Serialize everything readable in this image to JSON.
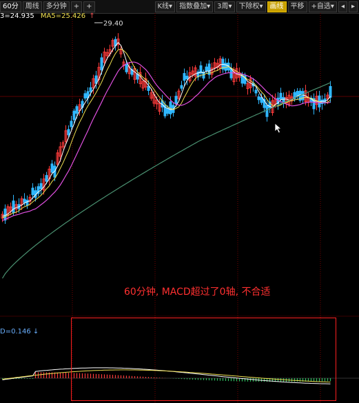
{
  "toolbar": {
    "left": [
      {
        "label": "60分"
      },
      {
        "label": "周线"
      },
      {
        "label": "多分钟"
      },
      {
        "label": "+"
      },
      {
        "label": "+"
      }
    ],
    "right": [
      {
        "label": "K线▾"
      },
      {
        "label": "指数叠加▾"
      },
      {
        "label": "3周▾"
      },
      {
        "label": "下除权▾"
      },
      {
        "label": "画线",
        "active": true
      },
      {
        "label": "平移"
      },
      {
        "label": "+自选▾"
      },
      {
        "label": "◂"
      },
      {
        "label": "▸"
      }
    ]
  },
  "ma_legend": {
    "ma3": "3=24.935",
    "ma5": "MA5=25.426",
    "arrow": "↑"
  },
  "chart": {
    "max_label": "29.40",
    "colors": {
      "up": "#ff3b3b",
      "down": "#2fb7ff",
      "ma_white": "#ffffff",
      "ma_yellow": "#f0e050",
      "ma_pink": "#e050e0",
      "ma_green": "#4a9070",
      "grid": "#7a0000"
    }
  },
  "macd": {
    "label": "D=0.146",
    "arrow": "↓"
  },
  "annotation": "60分钟, MACD超过了0轴, 不合适"
}
